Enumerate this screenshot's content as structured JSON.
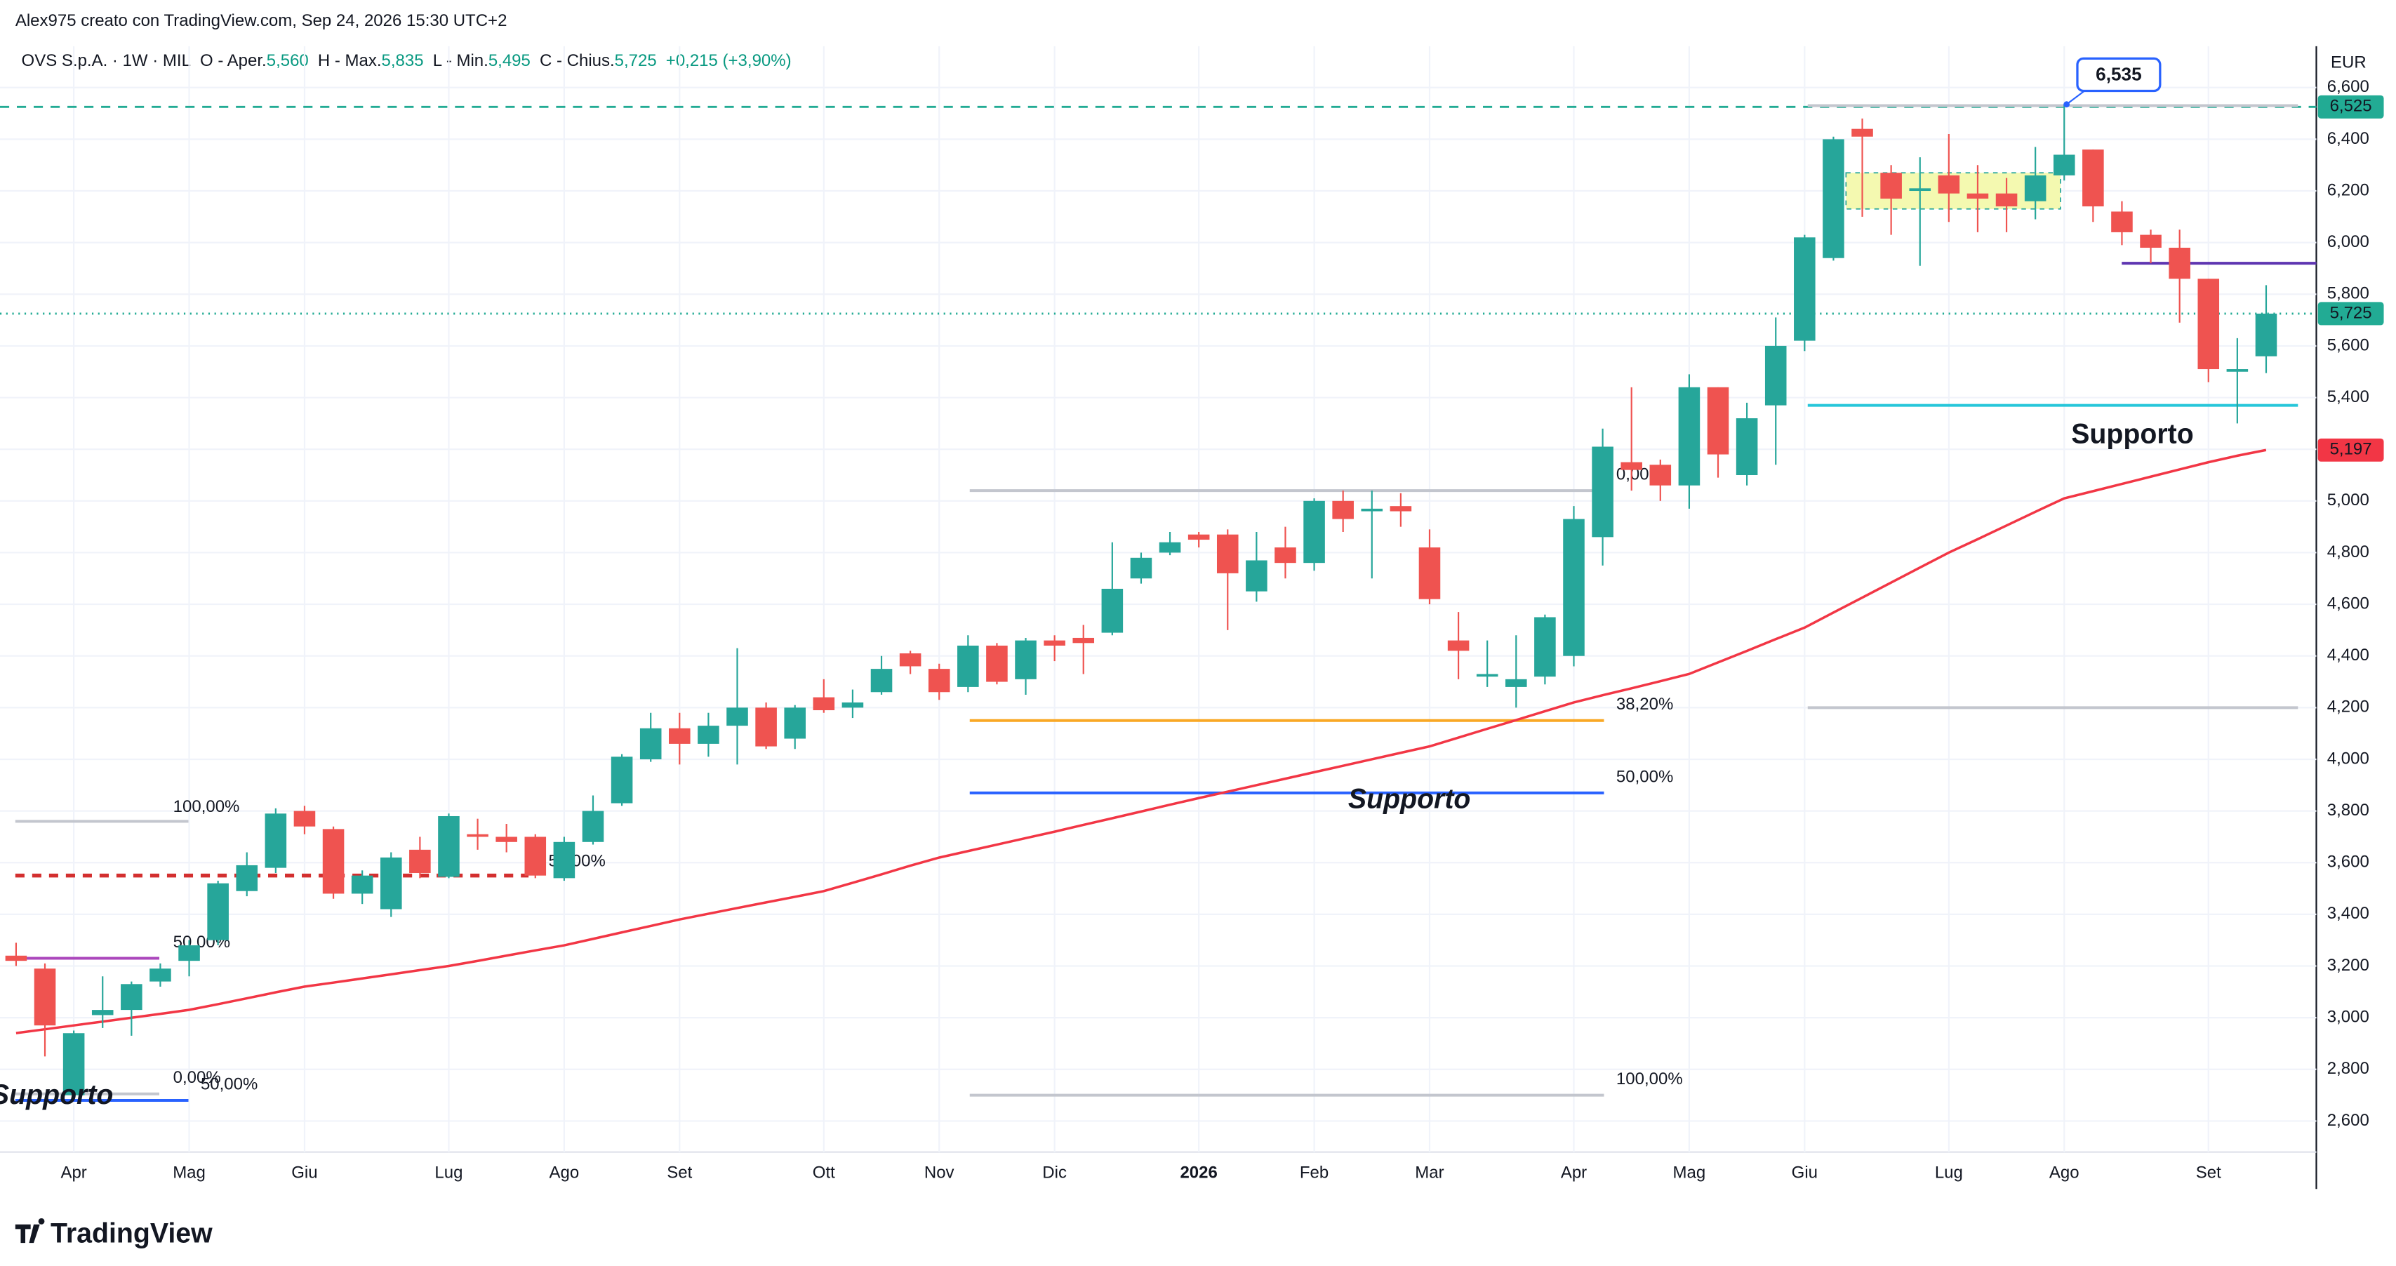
{
  "header": {
    "credit": "Alex975 creato con TradingView.com, Sep 24, 2026 15:30 UTC+2",
    "symbol": "OVS S.p.A. · 1W · MIL",
    "open_label": "O - Aper.",
    "open": "5,560",
    "high_label": "H - Max.",
    "high": "5,835",
    "low_label": "L - Min.",
    "low": "5,495",
    "close_label": "C - Chius.",
    "close": "5,725",
    "change": "+0,215 (+3,90%)"
  },
  "logo": "TradingView",
  "chart_data": {
    "type": "candlestick",
    "currency": "EUR",
    "up_color": "#26a69a",
    "down_color": "#ef5350",
    "categories": [
      null,
      null,
      "Apr",
      null,
      null,
      null,
      "Mag",
      null,
      null,
      null,
      "Giu",
      null,
      null,
      null,
      null,
      "Lug",
      null,
      null,
      null,
      "Ago",
      null,
      null,
      null,
      "Set",
      null,
      null,
      null,
      null,
      "Ott",
      null,
      null,
      null,
      "Nov",
      null,
      null,
      null,
      "Dic",
      null,
      null,
      null,
      null,
      "2026",
      null,
      null,
      null,
      "Feb",
      null,
      null,
      null,
      "Mar",
      null,
      null,
      null,
      null,
      "Apr",
      null,
      null,
      null,
      "Mag",
      null,
      null,
      null,
      "Giu",
      null,
      null,
      null,
      null,
      "Lug",
      null,
      null,
      null,
      "Ago",
      null,
      null,
      null,
      null,
      "Set",
      null,
      null
    ],
    "open": [
      3240,
      3190,
      2700,
      3010,
      3030,
      3140,
      3220,
      3300,
      3490,
      3580,
      3800,
      3730,
      3480,
      3420,
      3650,
      3545,
      3710,
      3700,
      3700,
      3540,
      3680,
      3830,
      4000,
      4120,
      4060,
      4130,
      4200,
      4080,
      4240,
      4200,
      4260,
      4410,
      4350,
      4280,
      4440,
      4310,
      4460,
      4470,
      4490,
      4700,
      4800,
      4870,
      4870,
      4650,
      4820,
      4760,
      5000,
      4960,
      4980,
      4820,
      4460,
      4320,
      4280,
      4320,
      4400,
      4860,
      5150,
      5140,
      5060,
      5440,
      5100,
      5370,
      5620,
      5940,
      6440,
      6270,
      6200,
      6260,
      6190,
      6190,
      6160,
      6260,
      6360,
      6120,
      6030,
      5980,
      5860,
      5500,
      5560
    ],
    "high": [
      3290,
      3210,
      2950,
      3160,
      3140,
      3210,
      3300,
      3530,
      3640,
      3810,
      3820,
      3740,
      3570,
      3640,
      3700,
      3790,
      3770,
      3750,
      3710,
      3700,
      3860,
      4020,
      4180,
      4180,
      4180,
      4430,
      4220,
      4210,
      4310,
      4270,
      4400,
      4420,
      4370,
      4480,
      4450,
      4470,
      4480,
      4520,
      4840,
      4800,
      4880,
      4880,
      4890,
      4880,
      4900,
      5010,
      5040,
      5040,
      5030,
      4890,
      4570,
      4460,
      4480,
      4560,
      4980,
      5280,
      5440,
      5160,
      5490,
      5440,
      5380,
      5710,
      6030,
      6410,
      6480,
      6300,
      6330,
      6420,
      6300,
      6250,
      6370,
      6535,
      6360,
      6160,
      6050,
      6050,
      5860,
      5630,
      5835
    ],
    "low": [
      3200,
      2850,
      2690,
      2960,
      2930,
      3120,
      3160,
      3280,
      3470,
      3560,
      3710,
      3460,
      3440,
      3390,
      3540,
      3540,
      3650,
      3640,
      3540,
      3530,
      3670,
      3820,
      3990,
      3980,
      4010,
      3980,
      4040,
      4040,
      4180,
      4160,
      4250,
      4330,
      4230,
      4260,
      4290,
      4250,
      4380,
      4330,
      4480,
      4680,
      4790,
      4820,
      4500,
      4610,
      4700,
      4730,
      4880,
      4700,
      4900,
      4600,
      4310,
      4280,
      4200,
      4290,
      4360,
      4750,
      5040,
      5000,
      4970,
      5090,
      5060,
      5140,
      5580,
      5930,
      6100,
      6030,
      5910,
      6080,
      6040,
      6040,
      6090,
      6240,
      6080,
      5990,
      5920,
      5690,
      5460,
      5300,
      5495
    ],
    "close": [
      3220,
      2970,
      2940,
      3030,
      3130,
      3190,
      3280,
      3520,
      3590,
      3790,
      3740,
      3480,
      3550,
      3620,
      3560,
      3780,
      3700,
      3680,
      3550,
      3680,
      3800,
      4010,
      4120,
      4060,
      4130,
      4200,
      4050,
      4200,
      4190,
      4220,
      4350,
      4360,
      4260,
      4440,
      4300,
      4460,
      4440,
      4450,
      4660,
      4780,
      4840,
      4850,
      4720,
      4770,
      4760,
      5000,
      4930,
      4970,
      4960,
      4620,
      4420,
      4330,
      4310,
      4550,
      4930,
      5210,
      5120,
      5060,
      5440,
      5180,
      5320,
      5600,
      6020,
      6400,
      6410,
      6170,
      6210,
      6190,
      6170,
      6140,
      6260,
      6340,
      6140,
      6040,
      5980,
      5860,
      5510,
      5510,
      5725
    ],
    "ma": {
      "color": "#f23645",
      "values": [
        2940,
        2955,
        2970,
        2985,
        3000,
        3015,
        3030,
        3052,
        3075,
        3098,
        3120,
        3136,
        3152,
        3168,
        3184,
        3200,
        3220,
        3240,
        3260,
        3280,
        3305,
        3330,
        3355,
        3380,
        3402,
        3424,
        3446,
        3468,
        3490,
        3522,
        3555,
        3588,
        3620,
        3645,
        3670,
        3695,
        3720,
        3746,
        3772,
        3798,
        3824,
        3850,
        3875,
        3900,
        3925,
        3950,
        3975,
        4000,
        4025,
        4050,
        4084,
        4118,
        4152,
        4186,
        4220,
        4248,
        4275,
        4302,
        4330,
        4375,
        4420,
        4465,
        4510,
        4568,
        4626,
        4684,
        4742,
        4800,
        4852,
        4905,
        4958,
        5010,
        5038,
        5066,
        5094,
        5122,
        5150,
        5175,
        5197
      ]
    },
    "ylim": [
      2480,
      6760
    ],
    "yticks": [
      {
        "value": 2600,
        "label": "2,600"
      },
      {
        "value": 2800,
        "label": "2,800"
      },
      {
        "value": 3000,
        "label": "3,000"
      },
      {
        "value": 3200,
        "label": "3,200"
      },
      {
        "value": 3400,
        "label": "3,400"
      },
      {
        "value": 3600,
        "label": "3,600"
      },
      {
        "value": 3800,
        "label": "3,800"
      },
      {
        "value": 4000,
        "label": "4,000"
      },
      {
        "value": 4200,
        "label": "4,200"
      },
      {
        "value": 4400,
        "label": "4,400"
      },
      {
        "value": 4600,
        "label": "4,600"
      },
      {
        "value": 4800,
        "label": "4,800"
      },
      {
        "value": 5000,
        "label": "5,000"
      },
      {
        "value": 5200,
        "label": "5,200"
      },
      {
        "value": 5400,
        "label": "5,400"
      },
      {
        "value": 5600,
        "label": "5,600"
      },
      {
        "value": 5800,
        "label": "5,800"
      },
      {
        "value": 6000,
        "label": "6,000"
      },
      {
        "value": 6200,
        "label": "6,200"
      },
      {
        "value": 6400,
        "label": "6,400"
      },
      {
        "value": 6600,
        "label": "6,600"
      }
    ],
    "grid": true,
    "levels": [
      {
        "value": 6525,
        "color": "#22ab94",
        "style": "dashed"
      },
      {
        "value": 5725,
        "color": "#22ab94",
        "style": "dotted"
      },
      {
        "value": 3550,
        "color": "#d32f2f",
        "style": "dashed",
        "label": "50,00%"
      },
      {
        "value": 3230,
        "color": "#ab47bc",
        "style": "solid",
        "label": "50,00%"
      },
      {
        "value": 2680,
        "color": "#2962ff",
        "style": "solid",
        "label": "50,00%"
      },
      {
        "value": 3760,
        "color": "#c3c6ce",
        "style": "solid",
        "label": "100,00%"
      },
      {
        "value": 2705,
        "color": "#c3c6ce",
        "style": "solid",
        "label": "0,00%"
      },
      {
        "value": 5040,
        "color": "#c3c6ce",
        "style": "solid",
        "label": "0,00%"
      },
      {
        "value": 4150,
        "color": "#f9a825",
        "style": "solid",
        "label": "38,20%"
      },
      {
        "value": 3870,
        "color": "#2962ff",
        "style": "solid",
        "label": "50,00%"
      },
      {
        "value": 2700,
        "color": "#c3c6ce",
        "style": "solid",
        "label": "100,00%"
      },
      {
        "value": 6530,
        "color": "#c3c6ce",
        "style": "solid"
      },
      {
        "value": 4200,
        "color": "#c3c6ce",
        "style": "solid"
      },
      {
        "value": 5370,
        "color": "#26c6da",
        "style": "solid"
      },
      {
        "value": 5920,
        "color": "#5e35b1",
        "style": "solid"
      }
    ],
    "zone": {
      "low": 6130,
      "high": 6270,
      "color": "#f4f9b0"
    },
    "notes": [
      "Supporto",
      "Supporto",
      "Supporto"
    ],
    "callout": {
      "value": 6535,
      "label": "6,535"
    },
    "badges": [
      {
        "value": 6525,
        "label": "6,525",
        "color": "#22ab94"
      },
      {
        "value": 5725,
        "label": "5,725",
        "color": "#22ab94"
      },
      {
        "value": 5197,
        "label": "5,197",
        "color": "#f23645"
      }
    ]
  }
}
